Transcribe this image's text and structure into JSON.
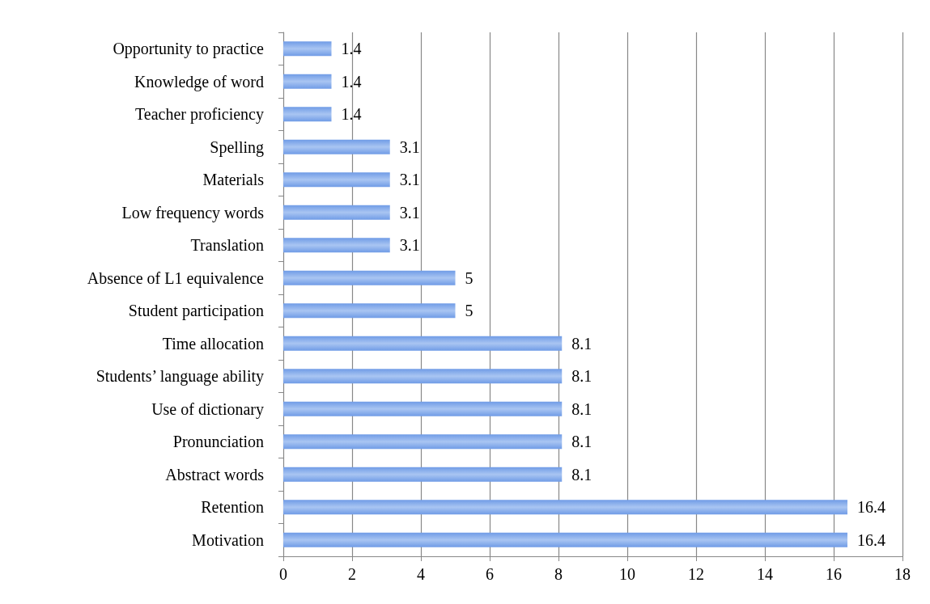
{
  "chart_data": {
    "type": "bar",
    "orientation": "horizontal",
    "categories": [
      "Opportunity to practice",
      "Knowledge of word",
      "Teacher proficiency",
      "Spelling",
      "Materials",
      "Low frequency words",
      "Translation",
      "Absence of L1 equivalence",
      "Student participation",
      "Time allocation",
      "Students’ language ability",
      "Use of dictionary",
      "Pronunciation",
      "Abstract words",
      "Retention",
      "Motivation"
    ],
    "values": [
      1.4,
      1.4,
      1.4,
      3.1,
      3.1,
      3.1,
      3.1,
      5,
      5,
      8.1,
      8.1,
      8.1,
      8.1,
      8.1,
      16.4,
      16.4
    ],
    "color": "#6f9be6",
    "xlim": [
      0,
      18
    ],
    "xticks": [
      0,
      2,
      4,
      6,
      8,
      10,
      12,
      14,
      16,
      18
    ],
    "grid": "x",
    "data_labels": true
  }
}
